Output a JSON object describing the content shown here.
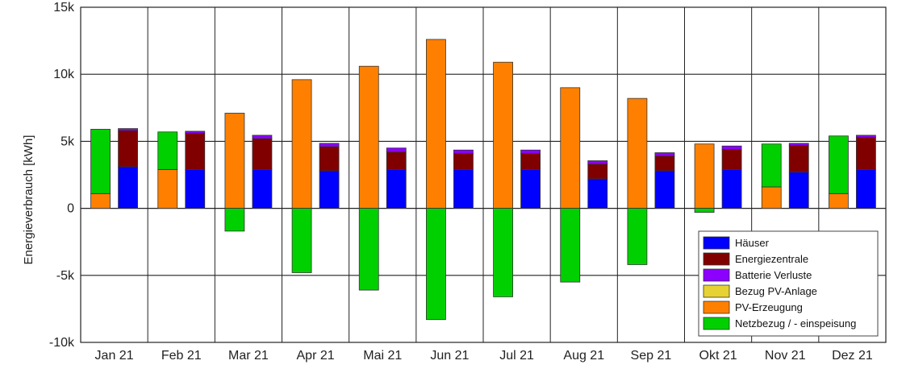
{
  "chart_data": {
    "type": "bar",
    "ylabel": "Energieverbrauch  [kWh]",
    "ylim": [
      -10000,
      15000
    ],
    "yticks": [
      15000,
      10000,
      5000,
      0,
      -5000,
      -10000
    ],
    "ytick_labels": [
      "15k",
      "10k",
      "5k",
      "0",
      "-5k",
      "-10k"
    ],
    "grid": true,
    "legend_position": "bottom-right",
    "categories": [
      "Jan 21",
      "Feb 21",
      "Mar 21",
      "Apr 21",
      "Mai 21",
      "Jun 21",
      "Jul 21",
      "Aug 21",
      "Sep 21",
      "Okt 21",
      "Nov 21",
      "Dez 21"
    ],
    "stacks": [
      "supply",
      "consumption"
    ],
    "series": [
      {
        "name": "Häuser",
        "color": "#0000ff",
        "stack": "consumption",
        "values": [
          3100,
          2900,
          2900,
          2800,
          2900,
          2900,
          2900,
          2200,
          2800,
          2900,
          2700,
          2900
        ]
      },
      {
        "name": "Energiezentrale",
        "color": "#800000",
        "stack": "consumption",
        "values": [
          2700,
          2700,
          2300,
          1800,
          1300,
          1200,
          1200,
          1100,
          1100,
          1500,
          2000,
          2400
        ]
      },
      {
        "name": "Batterie Verluste",
        "color": "#8b00ff",
        "stack": "consumption",
        "values": [
          150,
          150,
          250,
          250,
          300,
          250,
          250,
          250,
          250,
          250,
          150,
          150
        ]
      },
      {
        "name": "Bezug PV-Anlage",
        "color": "#e6d233",
        "stack": "supply",
        "values": [
          0,
          0,
          0,
          0,
          0,
          0,
          0,
          0,
          0,
          0,
          0,
          0
        ]
      },
      {
        "name": "PV-Erzeugung",
        "color": "#ff8000",
        "stack": "supply",
        "values": [
          1100,
          2900,
          7100,
          9600,
          10600,
          12600,
          10900,
          9000,
          8200,
          4800,
          1600,
          1100
        ]
      },
      {
        "name": "Netzbezug / - einspeisung",
        "color": "#00d000",
        "stack": "supply",
        "values": [
          4800,
          2800,
          -1700,
          -4800,
          -6100,
          -8300,
          -6600,
          -5500,
          -4200,
          -300,
          3200,
          4300
        ]
      }
    ]
  }
}
